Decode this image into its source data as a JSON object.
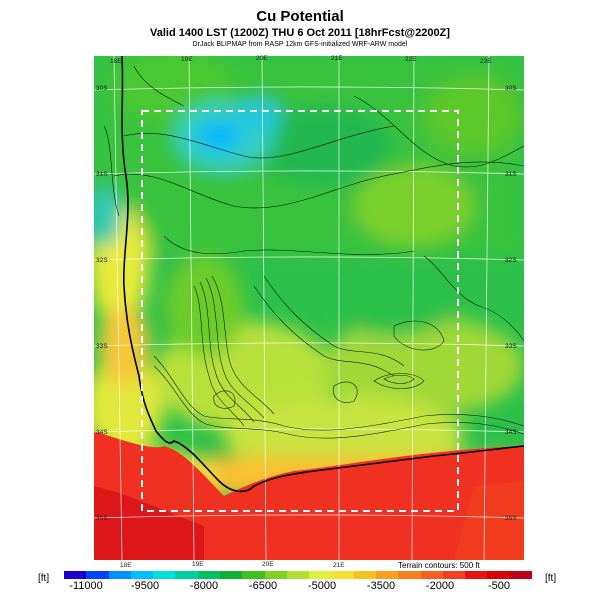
{
  "title": "Cu Potential",
  "subtitle": "Valid 1400 LST (1200Z) THU 6 Oct 2011 [18hrFcst@2200Z]",
  "credit": "DrJack BLIPMAP from RASP 12km GFS-initialized WRF-ARW model",
  "lon_labels_top": [
    "18E",
    "19E",
    "20E",
    "21E",
    "22E",
    "23E"
  ],
  "lon_labels_bottom": [
    "18E",
    "19E",
    "20E",
    "21E"
  ],
  "lat_labels_left": [
    "30S",
    "31S",
    "32S",
    "33S",
    "34S",
    "35S"
  ],
  "lat_labels_right": [
    "30S",
    "31S",
    "32S",
    "33S",
    "34S",
    "35S"
  ],
  "terrain_note": "Terrain contours: 500 ft",
  "legend": {
    "unit_left": "[ft]",
    "unit_right": "[ft]",
    "ticks": [
      "-11000",
      "-9500",
      "-8000",
      "-6500",
      "-5000",
      "-3500",
      "-2000",
      "-500"
    ],
    "colors": [
      "#1a00d0",
      "#0040ff",
      "#0090ff",
      "#00c0ff",
      "#00e0e0",
      "#00d0a0",
      "#00c060",
      "#10b030",
      "#40c020",
      "#80d020",
      "#b0e030",
      "#e0f040",
      "#f8e030",
      "#f8c020",
      "#f8a020",
      "#f88020",
      "#f86020",
      "#f04020",
      "#e81010",
      "#d80000",
      "#c00018"
    ]
  }
}
